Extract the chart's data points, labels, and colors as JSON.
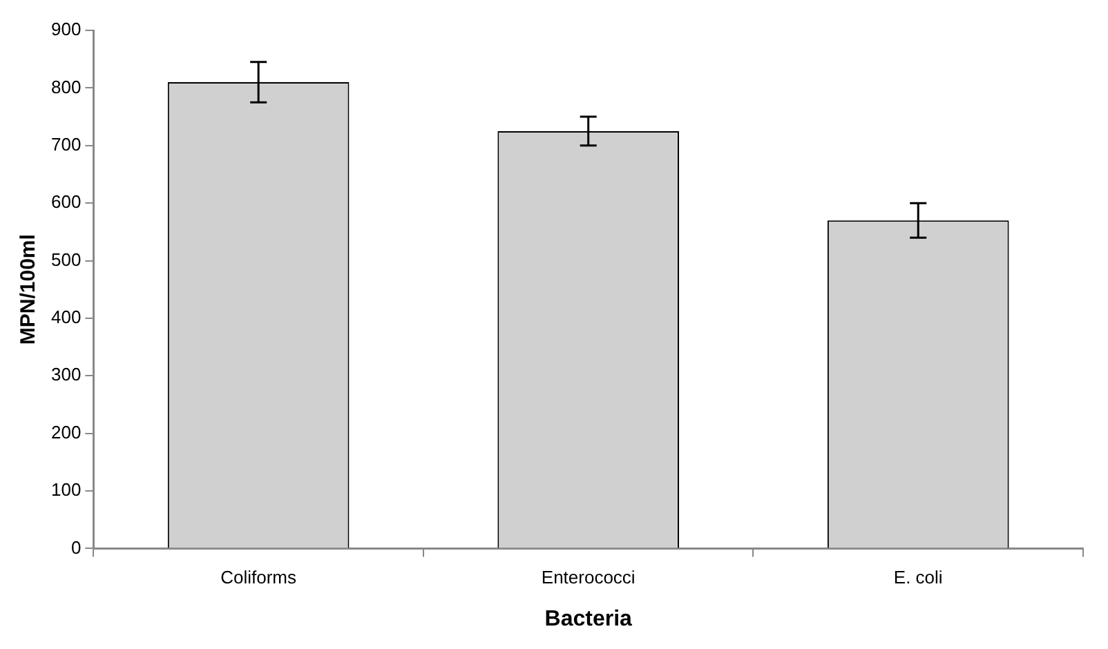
{
  "chart_data": {
    "type": "bar",
    "xlabel": "Bacteria",
    "ylabel": "MPN/100ml",
    "categories": [
      "Coliforms",
      "Enterococci",
      "E. coli"
    ],
    "values": [
      810,
      725,
      570
    ],
    "errors": [
      35,
      25,
      30
    ],
    "color": "#d0d0d0",
    "ylim": [
      0,
      900
    ],
    "yticks": [
      0,
      100,
      200,
      300,
      400,
      500,
      600,
      700,
      800,
      900
    ],
    "grid": false,
    "legend": false
  }
}
